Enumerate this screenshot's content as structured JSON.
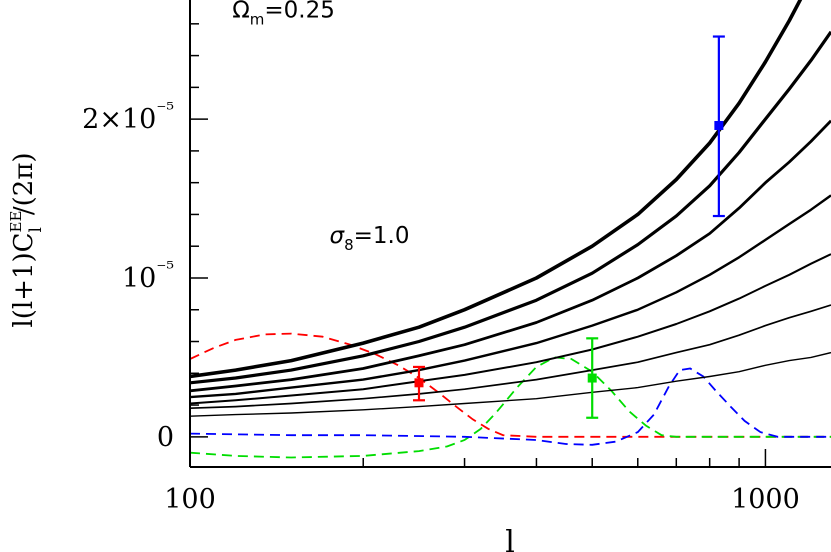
{
  "chart_data": {
    "type": "line",
    "title": "",
    "xlabel": "l",
    "ylabel": "l(l+1)C_l^EE/(2π)",
    "x_scale": "log",
    "xlim": [
      100,
      1300
    ],
    "ylim": [
      -1.9e-06,
      2.75e-05
    ],
    "x_ticks": [
      {
        "value": 100,
        "label": "100"
      },
      {
        "value": 1000,
        "label": "1000"
      }
    ],
    "y_ticks": [
      {
        "value": 0,
        "label": "0"
      },
      {
        "value": 1e-05,
        "label": "10⁻⁵"
      },
      {
        "value": 2e-05,
        "label": "2×10⁻⁵"
      }
    ],
    "annotations": [
      {
        "text": "Ωm=0.25",
        "x": 105,
        "y": 2.64e-05
      },
      {
        "text": "σ8=1.0",
        "x": 155,
        "y": 1.22e-05
      }
    ],
    "x": [
      100,
      120,
      150,
      200,
      250,
      300,
      400,
      500,
      600,
      700,
      800,
      900,
      1000,
      1100,
      1200,
      1300
    ],
    "series": [
      {
        "color": "#000000",
        "width": 3.6,
        "values": [
          3.8e-06,
          4.2e-06,
          4.8e-06,
          5.9e-06,
          6.9e-06,
          8e-06,
          1e-05,
          1.2e-05,
          1.4e-05,
          1.62e-05,
          1.85e-05,
          2.1e-05,
          2.36e-05,
          2.62e-05,
          2.88e-05,
          3.15e-05
        ]
      },
      {
        "color": "#000000",
        "width": 3.2,
        "values": [
          3.4e-06,
          3.7e-06,
          4.2e-06,
          5.1e-06,
          6e-06,
          6.9e-06,
          8.6e-06,
          1.03e-05,
          1.21e-05,
          1.39e-05,
          1.58e-05,
          1.79e-05,
          2e-05,
          2.19e-05,
          2.37e-05,
          2.55e-05
        ]
      },
      {
        "color": "#000000",
        "width": 2.8,
        "values": [
          2.9e-06,
          3.2e-06,
          3.6e-06,
          4.3e-06,
          5.1e-06,
          5.8e-06,
          7.2e-06,
          8.6e-06,
          1e-05,
          1.14e-05,
          1.28e-05,
          1.44e-05,
          1.6e-05,
          1.73e-05,
          1.86e-05,
          1.99e-05
        ]
      },
      {
        "color": "#000000",
        "width": 2.4,
        "values": [
          2.5e-06,
          2.7e-06,
          3.1e-06,
          3.6e-06,
          4.2e-06,
          4.8e-06,
          5.9e-06,
          7e-06,
          8e-06,
          9.1e-06,
          1.02e-05,
          1.13e-05,
          1.24e-05,
          1.34e-05,
          1.43e-05,
          1.52e-05
        ]
      },
      {
        "color": "#000000",
        "width": 2.0,
        "values": [
          2.1e-06,
          2.3e-06,
          2.6e-06,
          3e-06,
          3.5e-06,
          3.9e-06,
          4.7e-06,
          5.5e-06,
          6.3e-06,
          7.1e-06,
          7.9e-06,
          8.7e-06,
          9.5e-06,
          1.02e-05,
          1.09e-05,
          1.15e-05
        ]
      },
      {
        "color": "#000000",
        "width": 1.7,
        "values": [
          1.8e-06,
          1.9e-06,
          2.1e-06,
          2.4e-06,
          2.7e-06,
          3e-06,
          3.6e-06,
          4.2e-06,
          4.7e-06,
          5.3e-06,
          5.8e-06,
          6.4e-06,
          7e-06,
          7.5e-06,
          7.9e-06,
          8.3e-06
        ]
      },
      {
        "color": "#000000",
        "width": 1.4,
        "values": [
          1.3e-06,
          1.4e-06,
          1.5e-06,
          1.7e-06,
          1.9e-06,
          2.1e-06,
          2.4e-06,
          2.8e-06,
          3.1e-06,
          3.5e-06,
          3.8e-06,
          4.1e-06,
          4.5e-06,
          4.8e-06,
          5e-06,
          5.3e-06
        ]
      }
    ],
    "window_functions": [
      {
        "color": "#ff0000",
        "x": [
          100,
          110,
          120,
          135,
          150,
          170,
          190,
          210,
          230,
          250,
          270,
          290,
          310,
          330,
          350,
          400,
          500,
          700,
          1000,
          1300
        ],
        "values": [
          4.9e-06,
          5.6e-06,
          6.1e-06,
          6.45e-06,
          6.5e-06,
          6.3e-06,
          5.8e-06,
          5.2e-06,
          4.5e-06,
          3.7e-06,
          2.8e-06,
          1.9e-06,
          1.1e-06,
          5e-07,
          1e-07,
          0.0,
          0.0,
          0.0,
          0.0,
          0.0
        ]
      },
      {
        "color": "#00dd00",
        "x": [
          100,
          120,
          150,
          200,
          250,
          280,
          300,
          320,
          340,
          370,
          400,
          430,
          460,
          500,
          540,
          580,
          620,
          660,
          700,
          800,
          1000,
          1300
        ],
        "values": [
          -1e-06,
          -1.2e-06,
          -1.3e-06,
          -1.2e-06,
          -9e-07,
          -6e-07,
          -2e-07,
          5e-07,
          1.5e-06,
          3.1e-06,
          4.4e-06,
          5e-06,
          4.9e-06,
          4.1e-06,
          2.9e-06,
          1.6e-06,
          7e-07,
          1e-07,
          0.0,
          0.0,
          0.0,
          0.0
        ]
      },
      {
        "color": "#0000ff",
        "x": [
          100,
          150,
          200,
          300,
          400,
          450,
          500,
          550,
          600,
          640,
          680,
          710,
          740,
          780,
          820,
          870,
          920,
          980,
          1050,
          1100,
          1300
        ],
        "values": [
          2e-07,
          1e-07,
          1e-07,
          0.0,
          -2e-07,
          -4.5e-07,
          -5e-07,
          -3e-07,
          3e-07,
          1.4e-06,
          3.2e-06,
          4.2e-06,
          4.3e-06,
          3.8e-06,
          2.9e-06,
          1.9e-06,
          1e-06,
          3e-07,
          0.0,
          0.0,
          0.0
        ]
      }
    ],
    "data_points": [
      {
        "color": "#ff0000",
        "x": 250,
        "y": 3.4e-06,
        "yerr_low": 2.3e-06,
        "yerr_high": 4.4e-06
      },
      {
        "color": "#00dd00",
        "x": 500,
        "y": 3.7e-06,
        "yerr_low": 1.2e-06,
        "yerr_high": 6.2e-06
      },
      {
        "color": "#0000ff",
        "x": 830,
        "y": 1.96e-05,
        "yerr_low": 1.39e-05,
        "yerr_high": 2.52e-05
      }
    ]
  }
}
